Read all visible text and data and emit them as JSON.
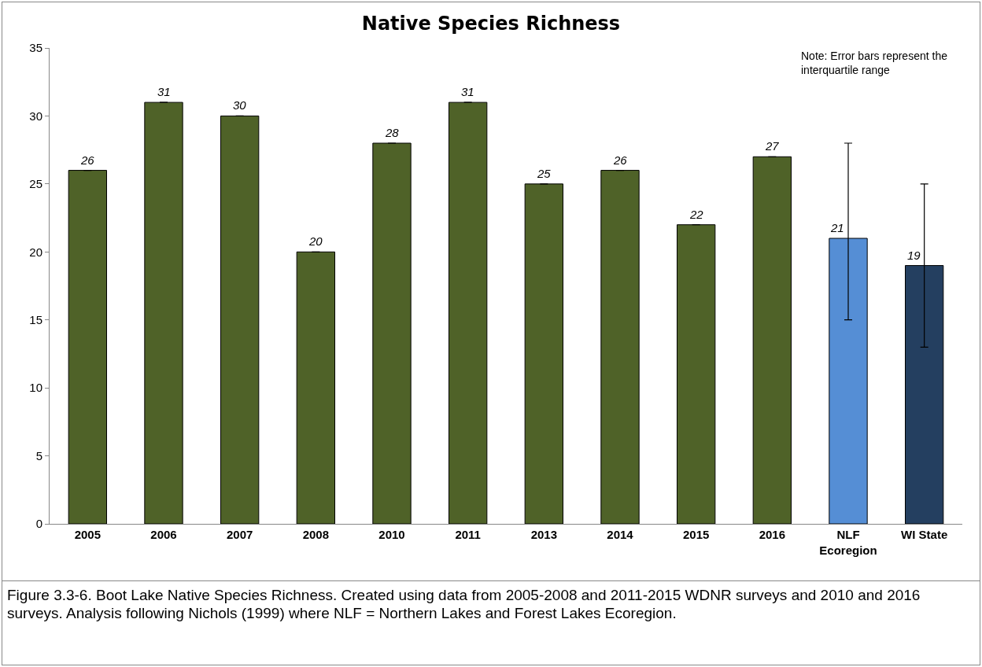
{
  "chart_data": {
    "type": "bar",
    "title": "Native Species Richness",
    "categories": [
      "2005",
      "2006",
      "2007",
      "2008",
      "2010",
      "2011",
      "2013",
      "2014",
      "2015",
      "2016",
      "NLF Ecoregion",
      "WI State"
    ],
    "values": [
      26,
      31,
      30,
      20,
      28,
      31,
      25,
      26,
      22,
      27,
      21,
      19
    ],
    "colors": [
      "#4f6228",
      "#4f6228",
      "#4f6228",
      "#4f6228",
      "#4f6228",
      "#4f6228",
      "#4f6228",
      "#4f6228",
      "#4f6228",
      "#4f6228",
      "#558ed5",
      "#243f60"
    ],
    "errors": [
      [
        26,
        26
      ],
      [
        31,
        31
      ],
      [
        30,
        30
      ],
      [
        20,
        20
      ],
      [
        28,
        28
      ],
      [
        31,
        31
      ],
      [
        25,
        25
      ],
      [
        26,
        26
      ],
      [
        22,
        22
      ],
      [
        27,
        27
      ],
      [
        15,
        28
      ],
      [
        13,
        25
      ]
    ],
    "ylim": [
      0,
      35
    ],
    "yticks": [
      0,
      5,
      10,
      15,
      20,
      25,
      30,
      35
    ],
    "grid": false,
    "data_labels": true,
    "annotations": [
      "Note: Error bars represent the interquartile range",
      "Figure 3.3-6. Boot Lake Native Species Richness.  Created using data from 2005-2008 and 2011-2015 WDNR surveys and 2010 and 2016 surveys.  Analysis following Nichols (1999) where NLF = Northern Lakes and Forest Lakes Ecoregion."
    ]
  }
}
